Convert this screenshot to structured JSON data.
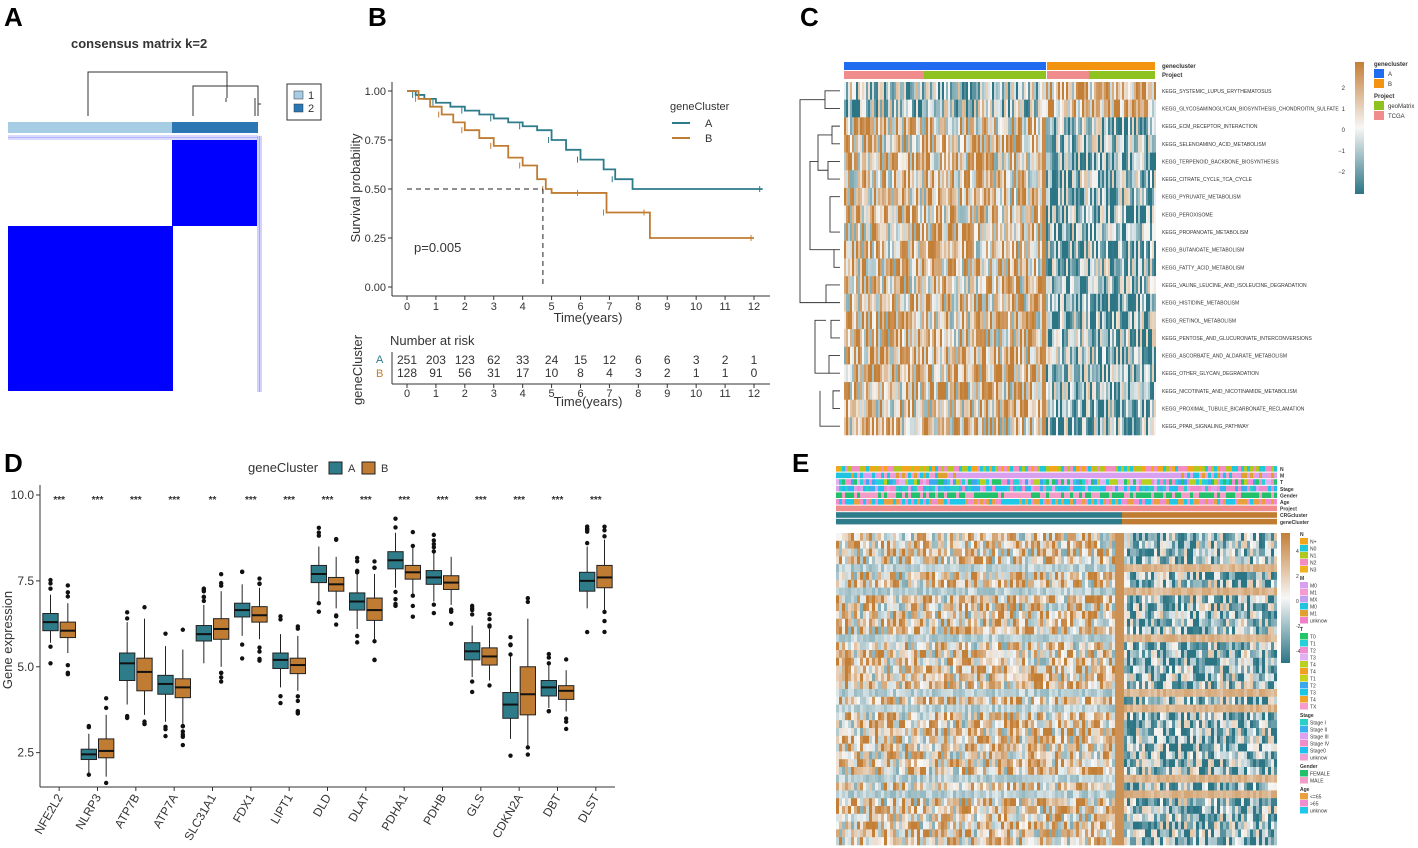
{
  "panels": {
    "a": "A",
    "b": "B",
    "c": "C",
    "d": "D",
    "e": "E"
  },
  "colors": {
    "cluster_a": "#2e7b89",
    "cluster_b": "#c07c32",
    "consensus_blue": "#0000ff",
    "light_blue": "#a6cde4",
    "dark_blue": "#2a77b4",
    "heat_low": "#2b7585",
    "heat_mid": "#f7f7f7",
    "heat_high": "#c47f37",
    "anno_blue": "#1f6cf0",
    "anno_orange": "#f39410",
    "anno_green": "#8dc21f",
    "anno_pink": "#f08c8c"
  },
  "panel_a": {
    "title": "consensus matrix k=2",
    "legend": [
      "1",
      "2"
    ]
  },
  "chart_data": [
    {
      "type": "line",
      "id": "km_curve",
      "title": "",
      "xlabel": "Time(years)",
      "ylabel": "Survival probability",
      "xlim": [
        0,
        12
      ],
      "ylim": [
        0,
        1
      ],
      "xticks": [
        "0",
        "1",
        "2",
        "3",
        "4",
        "5",
        "6",
        "7",
        "8",
        "9",
        "10",
        "11",
        "12"
      ],
      "yticks": [
        "0.00",
        "0.25",
        "0.50",
        "0.75",
        "1.00"
      ],
      "pvalue": "p=0.005",
      "legend_title": "geneCluster",
      "series": [
        {
          "name": "A",
          "points": [
            [
              0,
              1.0
            ],
            [
              0.3,
              0.98
            ],
            [
              0.6,
              0.96
            ],
            [
              1.0,
              0.94
            ],
            [
              1.5,
              0.92
            ],
            [
              2.0,
              0.9
            ],
            [
              2.5,
              0.88
            ],
            [
              3.0,
              0.86
            ],
            [
              3.5,
              0.84
            ],
            [
              4.0,
              0.82
            ],
            [
              4.5,
              0.8
            ],
            [
              5.0,
              0.75
            ],
            [
              5.5,
              0.7
            ],
            [
              6.0,
              0.65
            ],
            [
              6.8,
              0.6
            ],
            [
              7.2,
              0.55
            ],
            [
              7.8,
              0.5
            ],
            [
              12.3,
              0.5
            ]
          ]
        },
        {
          "name": "B",
          "points": [
            [
              0,
              1.0
            ],
            [
              0.4,
              0.96
            ],
            [
              0.8,
              0.92
            ],
            [
              1.2,
              0.88
            ],
            [
              1.6,
              0.84
            ],
            [
              2.0,
              0.8
            ],
            [
              2.5,
              0.76
            ],
            [
              3.0,
              0.72
            ],
            [
              3.5,
              0.66
            ],
            [
              4.0,
              0.62
            ],
            [
              4.5,
              0.55
            ],
            [
              4.8,
              0.5
            ],
            [
              5.0,
              0.48
            ],
            [
              6.0,
              0.48
            ],
            [
              6.3,
              0.48
            ],
            [
              6.9,
              0.38
            ],
            [
              7.5,
              0.38
            ],
            [
              8.3,
              0.38
            ],
            [
              8.4,
              0.25
            ],
            [
              12.0,
              0.25
            ]
          ]
        }
      ],
      "median_b": 4.7
    },
    {
      "type": "table",
      "id": "risk_table",
      "title": "Number at risk",
      "ylabel": "geneCluster",
      "xlabel": "Time(years)",
      "columns": [
        "0",
        "1",
        "2",
        "3",
        "4",
        "5",
        "6",
        "7",
        "8",
        "9",
        "10",
        "11",
        "12"
      ],
      "rows": [
        {
          "name": "A",
          "values": [
            "251",
            "203",
            "123",
            "62",
            "33",
            "24",
            "15",
            "12",
            "6",
            "6",
            "3",
            "2",
            "1"
          ]
        },
        {
          "name": "B",
          "values": [
            "128",
            "91",
            "56",
            "31",
            "17",
            "10",
            "8",
            "4",
            "3",
            "2",
            "1",
            "1",
            "0"
          ]
        }
      ]
    },
    {
      "type": "heatmap",
      "id": "gsva_heatmap",
      "annotation_rows": [
        "genecluster",
        "Project"
      ],
      "rows": [
        "KEGG_SYSTEMIC_LUPUS_ERYTHEMATOSUS",
        "KEGG_GLYCOSAMINOGLYCAN_BIOSYNTHESIS_CHONDROITIN_SULFATE",
        "KEGG_ECM_RECEPTOR_INTERACTION",
        "KEGG_SELENOAMINO_ACID_METABOLISM",
        "KEGG_TERPENOID_BACKBONE_BIOSYNTHESIS",
        "KEGG_CITRATE_CYCLE_TCA_CYCLE",
        "KEGG_PYRUVATE_METABOLISM",
        "KEGG_PEROXISOME",
        "KEGG_PROPANOATE_METABOLISM",
        "KEGG_BUTANOATE_METABOLISM",
        "KEGG_FATTY_ACID_METABOLISM",
        "KEGG_VALINE_LEUCINE_AND_ISOLEUCINE_DEGRADATION",
        "KEGG_HISTIDINE_METABOLISM",
        "KEGG_RETINOL_METABOLISM",
        "KEGG_PENTOSE_AND_GLUCURONATE_INTERCONVERSIONS",
        "KEGG_ASCORBATE_AND_ALDARATE_METABOLISM",
        "KEGG_OTHER_GLYCAN_DEGRADATION",
        "KEGG_NICOTINATE_AND_NICOTINAMIDE_METABOLISM",
        "KEGG_PROXIMAL_TUBULE_BICARBONATE_RECLAMATION",
        "KEGG_PPAR_SIGNALING_PATHWAY"
      ],
      "colorbar_ticks": [
        "2",
        "1",
        "0",
        "−1",
        "−2"
      ],
      "legends": [
        {
          "title": "genecluster",
          "items": [
            {
              "label": "A",
              "color": "#1f6cf0"
            },
            {
              "label": "B",
              "color": "#f39410"
            }
          ]
        },
        {
          "title": "Project",
          "items": [
            {
              "label": "geoMatrix",
              "color": "#8dc21f"
            },
            {
              "label": "TCGA",
              "color": "#f08c8c"
            }
          ]
        }
      ]
    },
    {
      "type": "box",
      "id": "gene_boxplot",
      "legend_title": "geneCluster",
      "ylabel": "Gene expression",
      "ylim": [
        1.5,
        10.0
      ],
      "yticks": [
        "2.5",
        "5.0",
        "7.5",
        "10.0"
      ],
      "categories": [
        "NFE2L2",
        "NLRP3",
        "ATP7B",
        "ATP7A",
        "SLC31A1",
        "FDX1",
        "LIPT1",
        "DLD",
        "DLAT",
        "PDHA1",
        "PDHB",
        "GLS",
        "CDKN2A",
        "DBT",
        "DLST"
      ],
      "significance": [
        "***",
        "***",
        "***",
        "***",
        "**",
        "***",
        "***",
        "***",
        "***",
        "***",
        "***",
        "***",
        "***",
        "***",
        "***"
      ],
      "series": [
        {
          "name": "A",
          "boxes": [
            [
              5.7,
              6.05,
              6.3,
              6.55,
              7.1
            ],
            [
              1.9,
              2.3,
              2.45,
              2.6,
              3.05
            ],
            [
              3.9,
              4.6,
              5.1,
              5.4,
              6.3
            ],
            [
              3.4,
              4.2,
              4.5,
              4.75,
              5.6
            ],
            [
              5.1,
              5.75,
              5.95,
              6.2,
              6.8
            ],
            [
              5.9,
              6.45,
              6.65,
              6.85,
              7.4
            ],
            [
              4.4,
              4.95,
              5.2,
              5.4,
              5.95
            ],
            [
              6.9,
              7.45,
              7.7,
              7.95,
              8.5
            ],
            [
              6.1,
              6.65,
              6.9,
              7.15,
              7.7
            ],
            [
              7.3,
              7.85,
              8.1,
              8.35,
              8.9
            ],
            [
              6.9,
              7.4,
              7.6,
              7.8,
              8.3
            ],
            [
              4.7,
              5.2,
              5.45,
              5.7,
              6.2
            ],
            [
              2.9,
              3.5,
              3.9,
              4.25,
              5.3
            ],
            [
              3.8,
              4.15,
              4.4,
              4.6,
              5.1
            ],
            [
              6.7,
              7.2,
              7.5,
              7.75,
              8.5
            ]
          ]
        },
        {
          "name": "B",
          "boxes": [
            [
              5.4,
              5.85,
              6.05,
              6.3,
              6.85
            ],
            [
              1.8,
              2.35,
              2.55,
              2.9,
              3.6
            ],
            [
              3.6,
              4.3,
              4.85,
              5.25,
              6.4
            ],
            [
              3.3,
              4.1,
              4.4,
              4.65,
              5.5
            ],
            [
              5.0,
              5.8,
              6.1,
              6.4,
              7.2
            ],
            [
              5.8,
              6.3,
              6.5,
              6.75,
              7.3
            ],
            [
              4.3,
              4.8,
              5.05,
              5.25,
              5.9
            ],
            [
              6.7,
              7.2,
              7.4,
              7.6,
              8.2
            ],
            [
              5.8,
              6.35,
              6.65,
              7.0,
              7.7
            ],
            [
              7.1,
              7.55,
              7.75,
              7.95,
              8.5
            ],
            [
              6.8,
              7.25,
              7.45,
              7.65,
              8.2
            ],
            [
              4.6,
              5.05,
              5.3,
              5.55,
              6.1
            ],
            [
              2.7,
              3.6,
              4.2,
              5.0,
              6.4
            ],
            [
              3.7,
              4.05,
              4.3,
              4.45,
              4.9
            ],
            [
              6.6,
              7.3,
              7.6,
              7.95,
              8.7
            ]
          ]
        }
      ]
    },
    {
      "type": "heatmap",
      "id": "gene_heatmap",
      "annotation_rows": [
        "N",
        "M",
        "T",
        "Stage",
        "Gender",
        "Age",
        "Project",
        "CRGcluster",
        "geneCluster"
      ],
      "colorbar_ticks": [
        "4",
        "2",
        "0",
        "-2",
        "-4"
      ],
      "legends": [
        {
          "title": "N",
          "items": [
            {
              "label": "N+",
              "color": "#f3a61c"
            },
            {
              "label": "N0",
              "color": "#1ec8d8"
            },
            {
              "label": "N1",
              "color": "#b0c720"
            },
            {
              "label": "N2",
              "color": "#f38cc0"
            },
            {
              "label": "N3",
              "color": "#f0b21e"
            }
          ]
        },
        {
          "title": "M",
          "items": [
            {
              "label": "M0",
              "color": "#d9a0f0"
            },
            {
              "label": "M1",
              "color": "#f49ccf"
            },
            {
              "label": "MX",
              "color": "#c0a0f0"
            },
            {
              "label": "M0",
              "color": "#21c4de"
            },
            {
              "label": "M1",
              "color": "#e0a030"
            },
            {
              "label": "unknow",
              "color": "#f080c8"
            }
          ]
        },
        {
          "title": "T",
          "items": [
            {
              "label": "T0",
              "color": "#22c56a"
            },
            {
              "label": "T1",
              "color": "#25d0d8"
            },
            {
              "label": "T2",
              "color": "#f08cd0"
            },
            {
              "label": "T3",
              "color": "#e0b0f0"
            },
            {
              "label": "T4",
              "color": "#b8d020"
            },
            {
              "label": "T4",
              "color": "#f0a020"
            },
            {
              "label": "T1",
              "color": "#c4d21c"
            },
            {
              "label": "T2",
              "color": "#3ba7f0"
            },
            {
              "label": "T3",
              "color": "#1bc6e4"
            },
            {
              "label": "T4",
              "color": "#f0a22a"
            },
            {
              "label": "TX",
              "color": "#f59bd0"
            }
          ]
        },
        {
          "title": "Stage",
          "items": [
            {
              "label": "Stage I",
              "color": "#2ad0c8"
            },
            {
              "label": "Stage II",
              "color": "#3ab0f0"
            },
            {
              "label": "Stage III",
              "color": "#e0a0f0"
            },
            {
              "label": "Stage IV",
              "color": "#f08cc8"
            },
            {
              "label": "Stage0",
              "color": "#1ec0f0"
            },
            {
              "label": "unknow",
              "color": "#f0a0d0"
            }
          ]
        },
        {
          "title": "Gender",
          "items": [
            {
              "label": "FEMALE",
              "color": "#22c06a"
            },
            {
              "label": "MALE",
              "color": "#f49cc8"
            }
          ]
        },
        {
          "title": "Age",
          "items": [
            {
              "label": "<=65",
              "color": "#e8a040"
            },
            {
              "label": ">65",
              "color": "#f08cd0"
            },
            {
              "label": "unknow",
              "color": "#1ec8e8"
            }
          ]
        }
      ]
    }
  ]
}
